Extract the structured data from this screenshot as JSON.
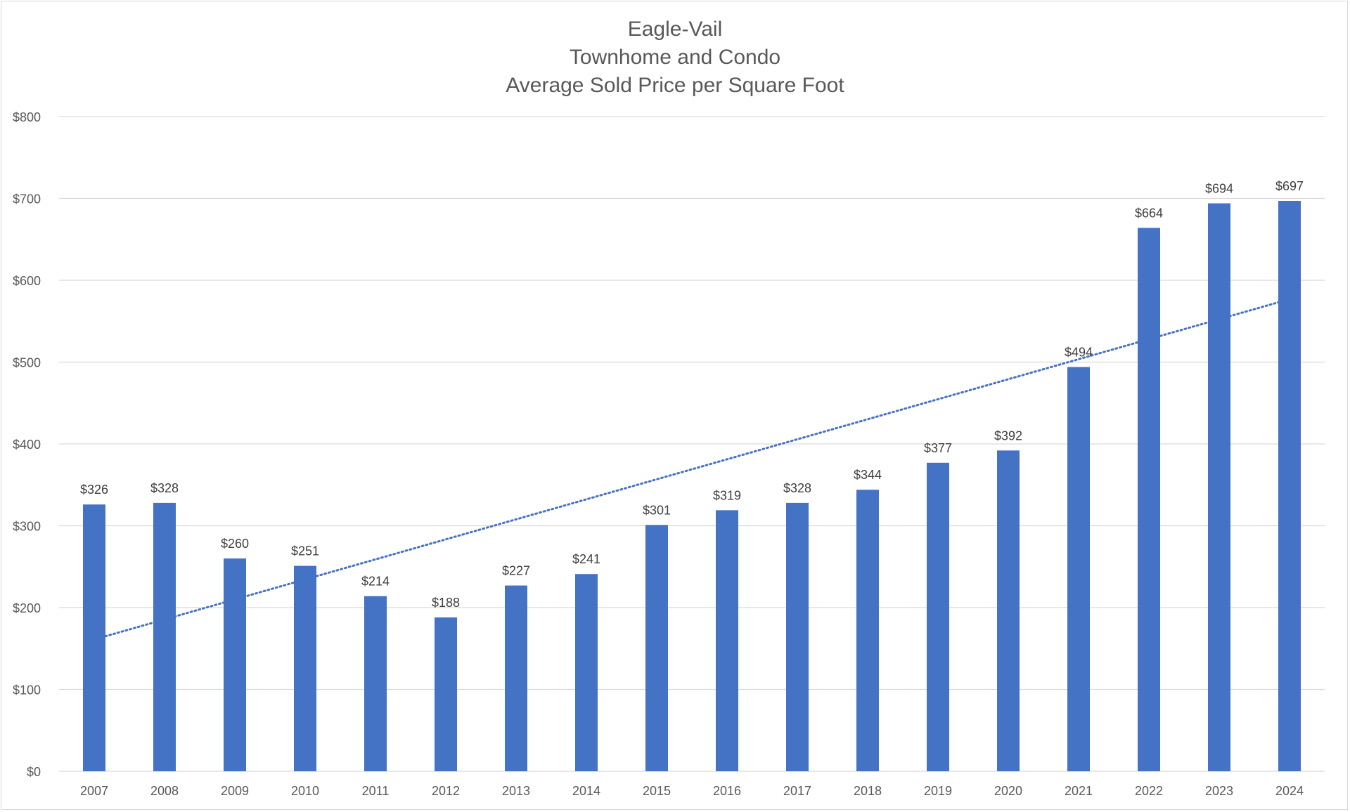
{
  "chart_data": {
    "type": "bar",
    "title": [
      "Eagle-Vail",
      "Townhome and Condo",
      "Average Sold Price per Square Foot"
    ],
    "xlabel": "",
    "ylabel": "",
    "categories": [
      "2007",
      "2008",
      "2009",
      "2010",
      "2011",
      "2012",
      "2013",
      "2014",
      "2015",
      "2016",
      "2017",
      "2018",
      "2019",
      "2020",
      "2021",
      "2022",
      "2023",
      "2024"
    ],
    "series": [
      {
        "values": [
          326,
          328,
          260,
          251,
          214,
          188,
          227,
          241,
          301,
          319,
          328,
          344,
          377,
          392,
          494,
          664,
          694,
          697
        ],
        "data_labels": [
          "$326",
          "$328",
          "$260",
          "$251",
          "$214",
          "$188",
          "$227",
          "$241",
          "$301",
          "$319",
          "$328",
          "$344",
          "$377",
          "$392",
          "$494",
          "$664",
          "$694",
          "$697"
        ]
      }
    ],
    "ylim": [
      0,
      800
    ],
    "yticks": [
      0,
      100,
      200,
      300,
      400,
      500,
      600,
      700,
      800
    ],
    "ytick_labels": [
      "$0",
      "$100",
      "$200",
      "$300",
      "$400",
      "$500",
      "$600",
      "$700",
      "$800"
    ],
    "trendline": {
      "type": "linear",
      "style": "dotted",
      "start_value": 165,
      "end_value": 573
    },
    "grid": true,
    "legend": "none",
    "colors": {
      "bar": "#4472C4",
      "trendline": "#4472C4",
      "grid": "#d9d9d9",
      "text": "#595959"
    }
  }
}
